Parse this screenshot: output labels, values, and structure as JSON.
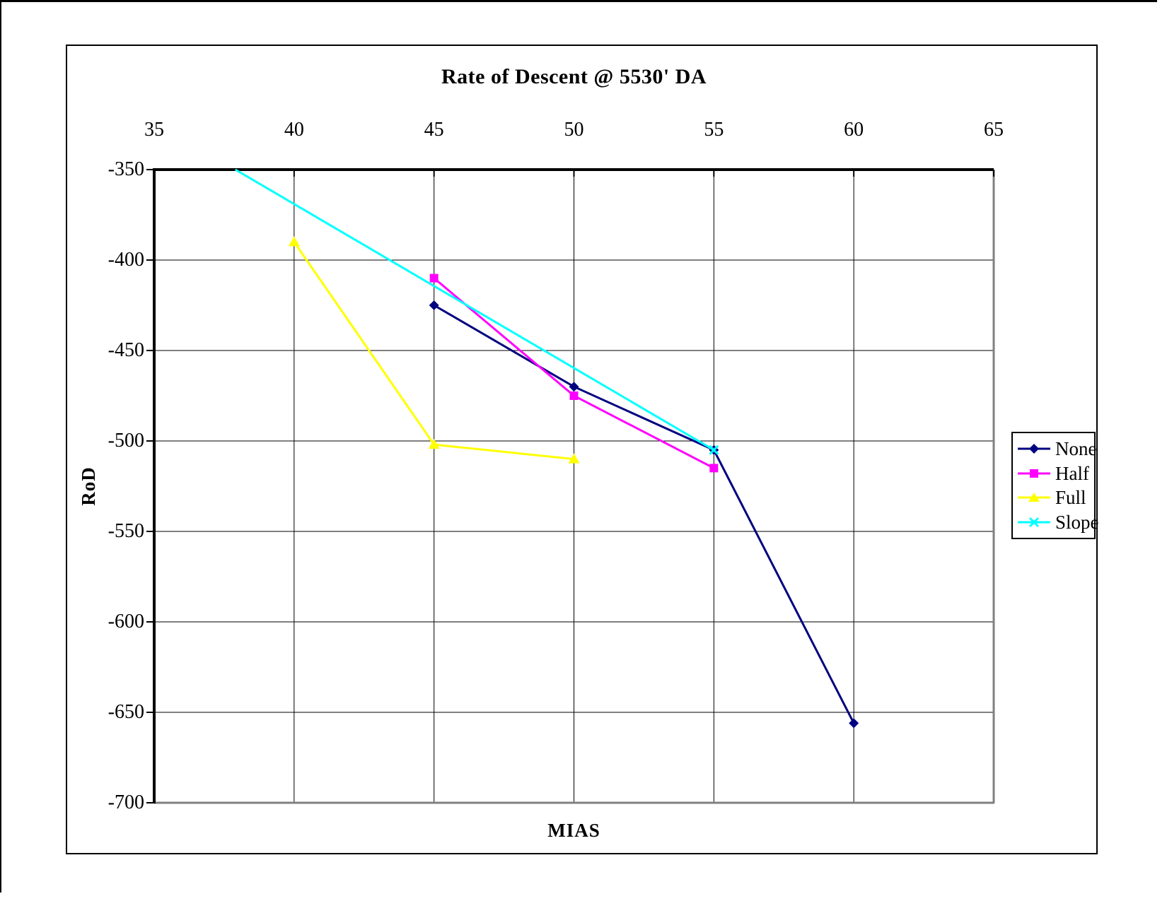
{
  "chart_data": {
    "type": "line",
    "title": "Rate of Descent @ 5530' DA",
    "xlabel": "MIAS",
    "ylabel": "RoD",
    "xlim": [
      35,
      65
    ],
    "ylim": [
      -700,
      -350
    ],
    "x_ticks": [
      35,
      40,
      45,
      50,
      55,
      60,
      65
    ],
    "y_ticks": [
      -350,
      -400,
      -450,
      -500,
      -550,
      -600,
      -650,
      -700
    ],
    "grid": true,
    "x_axis_position": "top",
    "legend_position": "right",
    "plot_border_color": "#808080",
    "axis_color": "#000000",
    "series": [
      {
        "name": "None",
        "color": "#000080",
        "marker": "diamond",
        "points": [
          [
            45,
            -425
          ],
          [
            50,
            -470
          ],
          [
            55,
            -505
          ],
          [
            60,
            -656
          ]
        ]
      },
      {
        "name": "Half",
        "color": "#FF00FF",
        "marker": "square",
        "points": [
          [
            45,
            -410
          ],
          [
            50,
            -475
          ],
          [
            55,
            -515
          ]
        ]
      },
      {
        "name": "Full",
        "color": "#FFFF00",
        "marker": "triangle",
        "points": [
          [
            40,
            -390
          ],
          [
            45,
            -502
          ],
          [
            50,
            -510
          ]
        ]
      },
      {
        "name": "Slope",
        "color": "#00FFFF",
        "marker": "x",
        "clipped_at_top": true,
        "points": [
          [
            37.9,
            -350
          ],
          [
            55,
            -505
          ]
        ],
        "marker_points": [
          [
            55,
            -505
          ]
        ]
      }
    ]
  }
}
